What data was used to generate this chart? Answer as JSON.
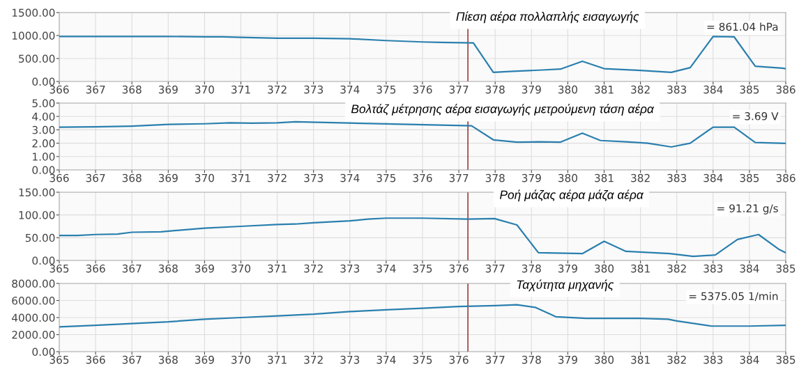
{
  "chart_data": [
    {
      "type": "line",
      "title": "Πίεση αέρα πολλαπλής εισαγωγής",
      "annotations": [
        "= 861.04 hPa"
      ],
      "xlim": [
        366,
        386
      ],
      "xticks": [
        366,
        367,
        368,
        369,
        370,
        371,
        372,
        373,
        374,
        375,
        376,
        377,
        378,
        379,
        380,
        381,
        382,
        383,
        384,
        385,
        386
      ],
      "ylim": [
        0,
        1500
      ],
      "yticks": [
        {
          "value": 0,
          "label": "0.00"
        },
        {
          "value": 500,
          "label": "500.00"
        },
        {
          "value": 1000,
          "label": "1000.00"
        },
        {
          "value": 1500,
          "label": "1500.00"
        }
      ],
      "grid": true,
      "ref_lines": [
        {
          "axis": "x",
          "value": 377.25,
          "color": "#8b1a1a"
        }
      ],
      "series": [
        {
          "color": "#2a7fae",
          "x": [
            366,
            367,
            368,
            369,
            370,
            370.5,
            371,
            372,
            373,
            374,
            375,
            376,
            376.5,
            377.4,
            377.95,
            378.5,
            379.3,
            379.8,
            380.4,
            381,
            382,
            382.85,
            383.37,
            384.0,
            384.58,
            385.16,
            385.9,
            386
          ],
          "values": [
            980,
            980,
            980,
            980,
            970,
            970,
            960,
            940,
            940,
            930,
            890,
            860,
            850,
            840,
            200,
            220,
            250,
            270,
            440,
            280,
            240,
            200,
            300,
            980,
            970,
            330,
            290,
            280
          ]
        }
      ]
    },
    {
      "type": "line",
      "title": "Βολτάζ μέτρησης αέρα εισαγωγής μετρούμενη τάση αέρα",
      "annotations": [
        "= 3.69 V"
      ],
      "xlim": [
        366,
        386
      ],
      "xticks": [
        366,
        367,
        368,
        369,
        370,
        371,
        372,
        373,
        374,
        375,
        376,
        377,
        378,
        379,
        380,
        381,
        382,
        383,
        384,
        385,
        386
      ],
      "ylim": [
        0,
        5
      ],
      "yticks": [
        {
          "value": 0,
          "label": "0.00"
        },
        {
          "value": 1,
          "label": "1.00"
        },
        {
          "value": 2,
          "label": "2.00"
        },
        {
          "value": 3,
          "label": "3.00"
        },
        {
          "value": 4,
          "label": "4.00"
        },
        {
          "value": 5,
          "label": "5.00"
        }
      ],
      "grid": true,
      "ref_lines": [
        {
          "axis": "x",
          "value": 377.25,
          "color": "#8b1a1a"
        }
      ],
      "series": [
        {
          "color": "#2a7fae",
          "x": [
            366,
            367,
            368,
            369,
            370,
            370.7,
            371.3,
            372,
            372.5,
            377.35,
            377.95,
            378.6,
            379.2,
            379.8,
            380.4,
            380.9,
            381.6,
            382.2,
            382.85,
            383.37,
            384.0,
            384.58,
            385.16,
            386
          ],
          "values": [
            3.2,
            3.22,
            3.28,
            3.4,
            3.45,
            3.52,
            3.5,
            3.52,
            3.6,
            3.3,
            2.25,
            2.08,
            2.1,
            2.08,
            2.75,
            2.2,
            2.1,
            2.0,
            1.72,
            2.0,
            3.2,
            3.2,
            2.05,
            1.98
          ]
        }
      ]
    },
    {
      "type": "line",
      "title": "Ροή μάζας αέρα μάζα αέρα",
      "annotations": [
        "= 91.21 g/s"
      ],
      "xlim": [
        365,
        385
      ],
      "xticks": [
        365,
        366,
        367,
        368,
        369,
        370,
        371,
        372,
        373,
        374,
        375,
        376,
        377,
        378,
        379,
        380,
        381,
        382,
        383,
        384,
        385
      ],
      "ylim": [
        0,
        150
      ],
      "yticks": [
        {
          "value": 0,
          "label": "0.00"
        },
        {
          "value": 50,
          "label": "50.00"
        },
        {
          "value": 100,
          "label": "100.00"
        },
        {
          "value": 150,
          "label": "150.00"
        }
      ],
      "grid": true,
      "ref_lines": [
        {
          "axis": "x",
          "value": 376.25,
          "color": "#8b1a1a"
        }
      ],
      "series": [
        {
          "color": "#2a7fae",
          "x": [
            365,
            365.5,
            366,
            366.6,
            367,
            367.8,
            369,
            370,
            371,
            371.5,
            372,
            373,
            373.5,
            374,
            375,
            376.25,
            376.98,
            377.6,
            378.19,
            379.4,
            380.0,
            380.6,
            381.8,
            382.45,
            383.06,
            383.67,
            384.25,
            384.8,
            385
          ],
          "values": [
            55,
            55,
            57,
            58,
            62,
            63,
            71,
            75,
            79,
            80,
            83,
            87,
            91,
            93,
            93,
            91,
            92,
            78,
            17,
            15,
            42,
            20,
            15,
            9,
            12,
            46,
            57,
            25,
            17
          ]
        }
      ]
    },
    {
      "type": "line",
      "title": "Ταχύτητα μηχανής",
      "annotations": [
        "= 5375.05 1/min"
      ],
      "xlim": [
        365,
        385
      ],
      "xticks": [
        365,
        366,
        367,
        368,
        369,
        370,
        371,
        372,
        373,
        374,
        375,
        376,
        377,
        378,
        379,
        380,
        381,
        382,
        383,
        384,
        385
      ],
      "ylim": [
        0,
        8000
      ],
      "yticks": [
        {
          "value": 0,
          "label": "0.00"
        },
        {
          "value": 2000,
          "label": "2000.00"
        },
        {
          "value": 4000,
          "label": "4000.00"
        },
        {
          "value": 6000,
          "label": "6000.00"
        },
        {
          "value": 8000,
          "label": "8000.00"
        }
      ],
      "grid": true,
      "ref_lines": [
        {
          "axis": "x",
          "value": 376.25,
          "color": "#8b1a1a"
        }
      ],
      "series": [
        {
          "color": "#2a7fae",
          "x": [
            365,
            366,
            367,
            368,
            369,
            370,
            371,
            372,
            373,
            374,
            375,
            376,
            377,
            377.6,
            378.1,
            378.67,
            379.5,
            380,
            381,
            381.76,
            382,
            382.95,
            384,
            385
          ],
          "values": [
            2900,
            3100,
            3300,
            3500,
            3800,
            4000,
            4200,
            4400,
            4700,
            4900,
            5100,
            5300,
            5400,
            5500,
            5200,
            4100,
            3900,
            3900,
            3900,
            3800,
            3600,
            3000,
            3000,
            3100
          ]
        }
      ]
    }
  ]
}
